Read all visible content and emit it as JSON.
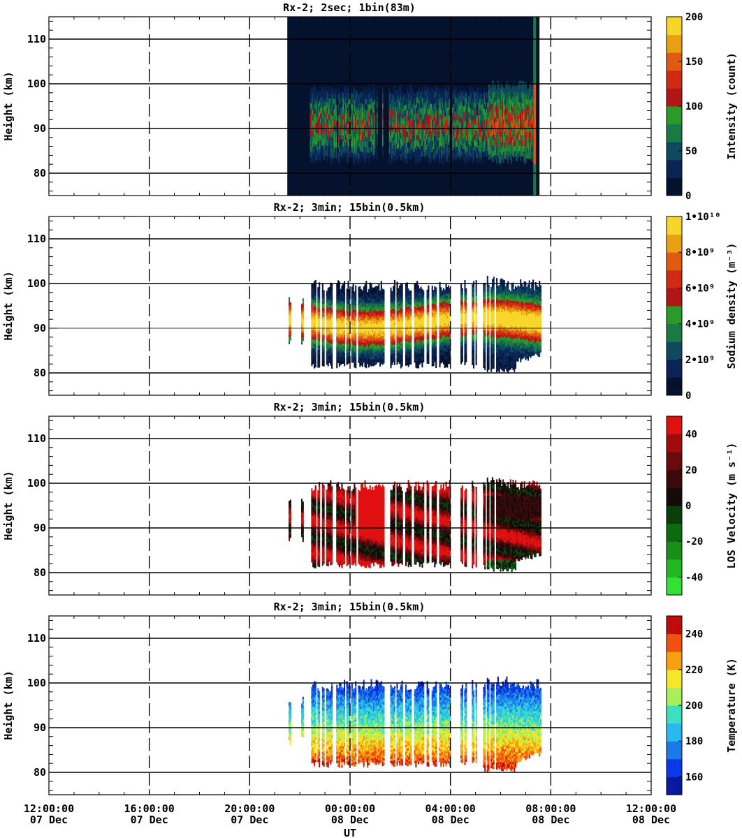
{
  "figure": {
    "xlabel": "UT"
  },
  "x_ticks": [
    {
      "time": "12:00:00",
      "date": "07 Dec"
    },
    {
      "time": "16:00:00",
      "date": "07 Dec"
    },
    {
      "time": "20:00:00",
      "date": "07 Dec"
    },
    {
      "time": "00:00:00",
      "date": "08 Dec"
    },
    {
      "time": "04:00:00",
      "date": "08 Dec"
    },
    {
      "time": "08:00:00",
      "date": "08 Dec"
    },
    {
      "time": "12:00:00",
      "date": "08 Dec"
    }
  ],
  "chart_data": [
    {
      "type": "heatmap",
      "title": "Rx-2;  2sec; 1bin(83m)",
      "ylabel": "Height (km)",
      "ylim": [
        75,
        115
      ],
      "yticks": [
        80,
        90,
        100,
        110
      ],
      "x_range": [
        "07 Dec 12:00:00",
        "08 Dec 12:00:00"
      ],
      "grid": true,
      "colorbar": {
        "label": "Intensity (count)",
        "range": [
          0,
          200
        ],
        "ticks": [
          "0",
          "50",
          "100",
          "150",
          "200"
        ],
        "colors": [
          "#05122e",
          "#0a2455",
          "#0e4a5e",
          "#1a7a44",
          "#2a9a2a",
          "#b01616",
          "#d02a12",
          "#e05a10",
          "#e8a012",
          "#f6d62a"
        ]
      },
      "data_extent": {
        "time_start": "07 Dec 21:30",
        "time_end": "08 Dec 07:35",
        "layer_height_km": [
          82,
          99
        ],
        "layer_peak_km": 90,
        "saturated_near": "08 Dec 07:30"
      }
    },
    {
      "type": "heatmap",
      "title": "Rx-2; 3min; 15bin(0.5km)",
      "ylabel": "Height (km)",
      "ylim": [
        75,
        115
      ],
      "yticks": [
        80,
        90,
        100,
        110
      ],
      "x_range": [
        "07 Dec 12:00:00",
        "08 Dec 12:00:00"
      ],
      "grid": true,
      "colorbar": {
        "label": "Sodium density (m⁻³)",
        "range": [
          0,
          10000000000.0
        ],
        "ticks": [
          "0",
          "2•10⁹",
          "4•10⁹",
          "6•10⁹",
          "8•10⁹",
          "1•10¹⁰"
        ],
        "colors": [
          "#05122e",
          "#0a2455",
          "#0e4a5e",
          "#1a7a44",
          "#2a9a2a",
          "#b01616",
          "#d02a12",
          "#e05a10",
          "#e8a012",
          "#f6d62a"
        ]
      },
      "data_extent": {
        "time_start": "07 Dec 22:00",
        "time_end": "08 Dec 07:35",
        "layer_height_km": [
          80,
          101
        ],
        "layer_peak_km": 91
      }
    },
    {
      "type": "heatmap",
      "title": "Rx-2; 3min; 15bin(0.5km)",
      "ylabel": "Height (km)",
      "ylim": [
        75,
        115
      ],
      "yticks": [
        80,
        90,
        100,
        110
      ],
      "x_range": [
        "07 Dec 12:00:00",
        "08 Dec 12:00:00"
      ],
      "grid": true,
      "colorbar": {
        "label": "LOS Velocity (m s⁻¹)",
        "range": [
          -50,
          50
        ],
        "ticks": [
          "-40",
          "-20",
          "0",
          "20",
          "40"
        ],
        "colors": [
          "#33e033",
          "#22b822",
          "#189018",
          "#0e6a0e",
          "#0a3f0a",
          "#140a0a",
          "#3a0a0a",
          "#6a0a0a",
          "#a00c0c",
          "#e01010"
        ]
      },
      "data_extent": {
        "time_start": "07 Dec 22:00",
        "time_end": "08 Dec 07:35",
        "layer_height_km": [
          80,
          101
        ]
      }
    },
    {
      "type": "heatmap",
      "title": "Rx-2; 3min; 15bin(0.5km)",
      "ylabel": "Height (km)",
      "ylim": [
        75,
        115
      ],
      "yticks": [
        80,
        90,
        100,
        110
      ],
      "x_range": [
        "07 Dec 12:00:00",
        "08 Dec 12:00:00"
      ],
      "grid": true,
      "colorbar": {
        "label": "Temperature (K)",
        "range": [
          150,
          250
        ],
        "ticks": [
          "160",
          "180",
          "200",
          "220",
          "240"
        ],
        "colors": [
          "#0a1aa0",
          "#0a3ae8",
          "#1a7ae8",
          "#2ab8f0",
          "#3ae0c0",
          "#a8ee5a",
          "#f6e62a",
          "#f6a012",
          "#f05010",
          "#c00c0c"
        ]
      },
      "data_extent": {
        "time_start": "07 Dec 22:00",
        "time_end": "08 Dec 07:35",
        "layer_height_km": [
          80,
          101
        ]
      }
    }
  ]
}
